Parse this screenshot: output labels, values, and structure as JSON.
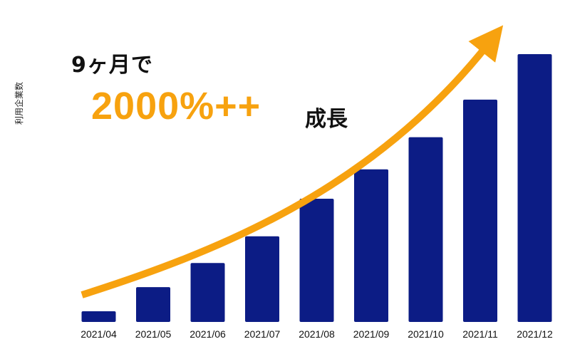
{
  "chart_data": {
    "type": "bar",
    "categories": [
      "2021/04",
      "2021/05",
      "2021/06",
      "2021/07",
      "2021/08",
      "2021/09",
      "2021/10",
      "2021/11",
      "2021/12"
    ],
    "values": [
      4,
      13,
      22,
      32,
      46,
      57,
      69,
      83,
      100
    ],
    "ylabel": "利用企業数",
    "ylim": [
      0,
      100
    ],
    "grid": false,
    "annotations": {
      "line1": "9ヶ月で",
      "line2": "2000%++",
      "line3": "成長"
    }
  },
  "colors": {
    "bar": "#0c1c85",
    "accent": "#f7a20f",
    "text": "#111111"
  }
}
